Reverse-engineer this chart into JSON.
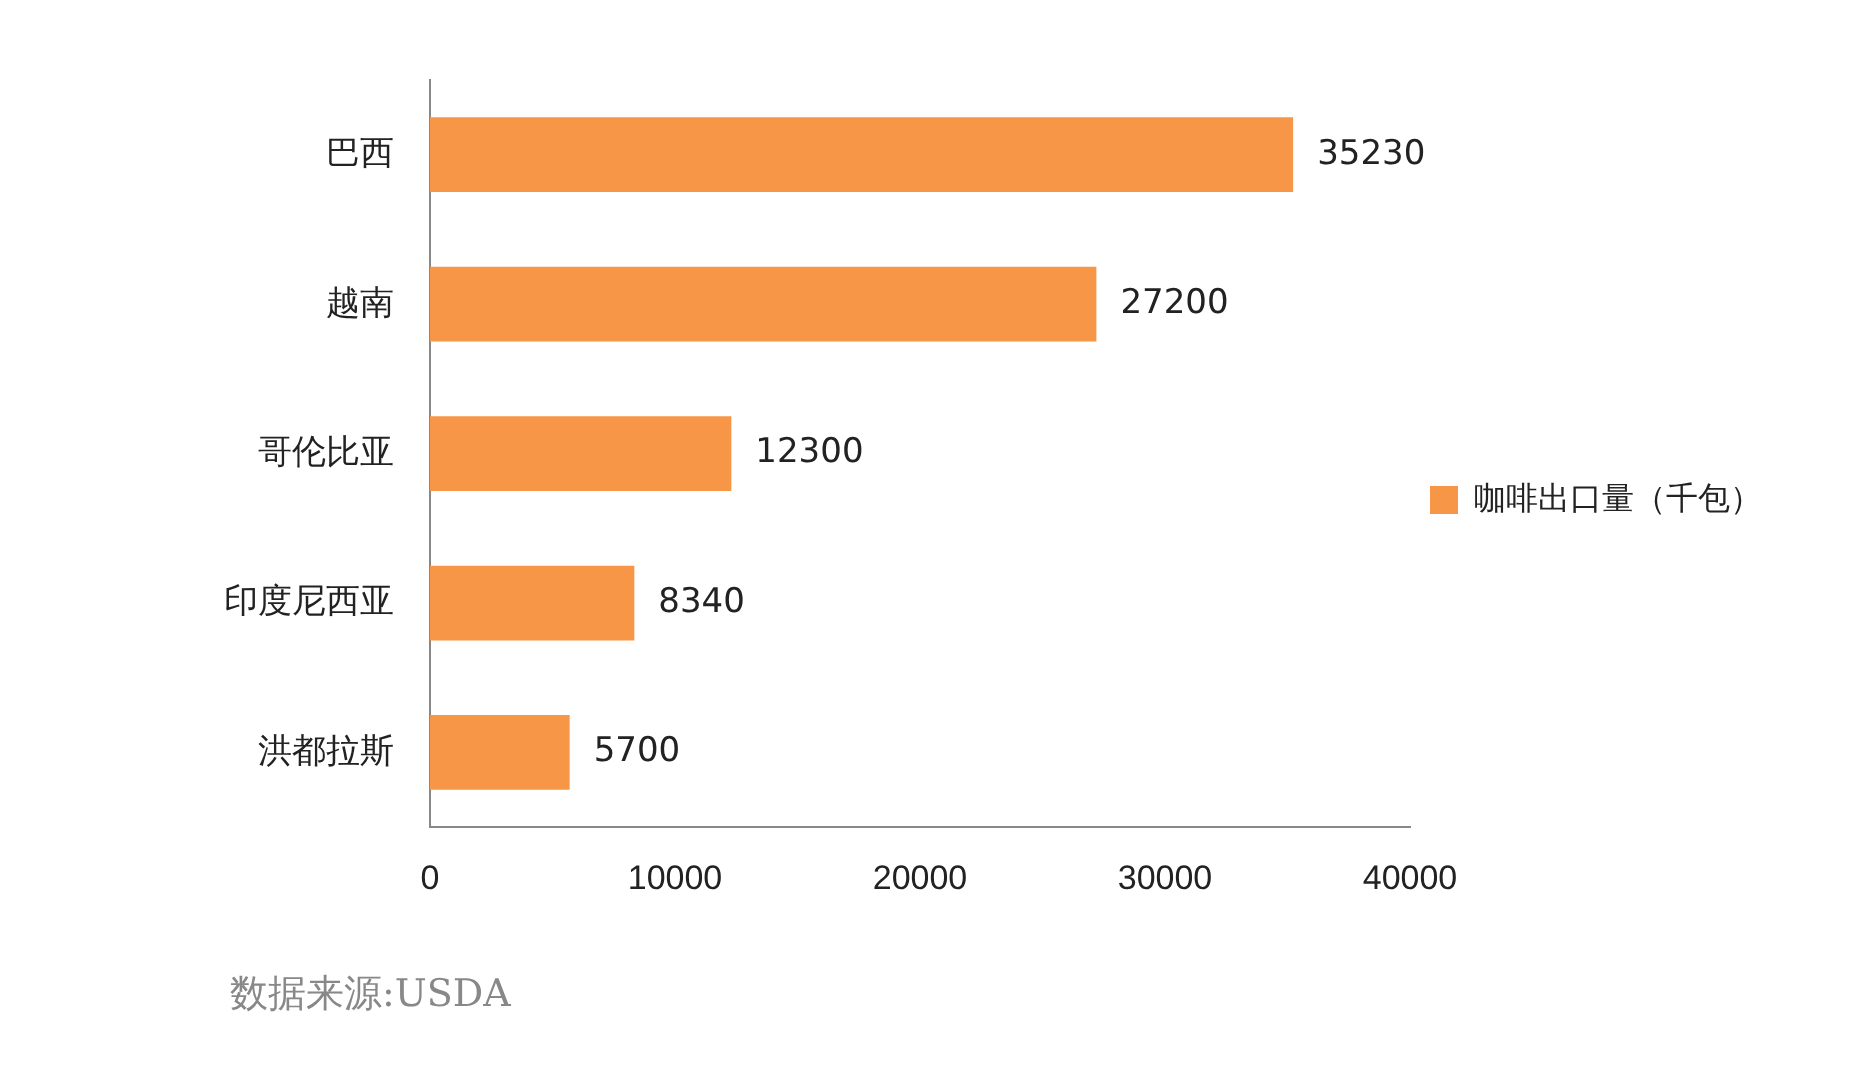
{
  "chart_data": {
    "type": "bar",
    "orientation": "horizontal",
    "categories": [
      "巴西",
      "越南",
      "哥伦比亚",
      "印度尼西亚",
      "洪都拉斯"
    ],
    "series": [
      {
        "name": "咖啡出口量（千包）",
        "color": "#f79646",
        "values": [
          35230,
          27200,
          12300,
          8340,
          5700
        ]
      }
    ],
    "xlim": [
      0,
      40000
    ],
    "xticks": [
      0,
      10000,
      20000,
      30000,
      40000
    ],
    "grid": false,
    "legend": "right",
    "data_labels": true,
    "annotations": [
      "数据来源:USDA"
    ]
  }
}
